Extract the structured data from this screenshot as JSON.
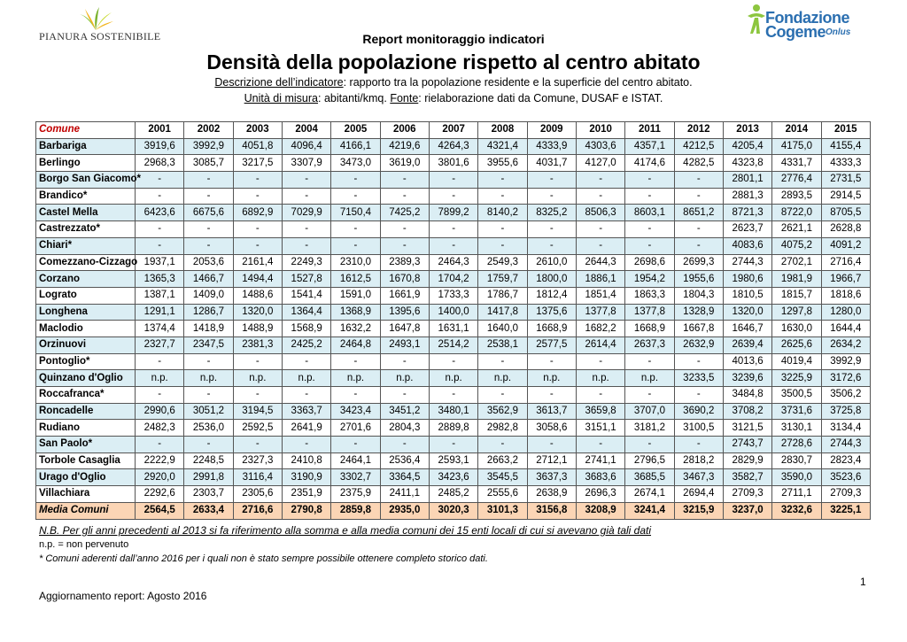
{
  "logos": {
    "left_text": "PIANURA SOSTENIBILE",
    "right_line1": "Fondazione",
    "right_line2": "Cogeme",
    "right_line3": "Onlus",
    "colors": {
      "green": "#8dc63f",
      "blue": "#2b6fb0"
    }
  },
  "report_label": "Report monitoraggio indicatori",
  "title": "Densità della popolazione rispetto al centro abitato",
  "description": {
    "label": "Descrizione dell’indicatore",
    "text": ": rapporto tra la popolazione residente e la superficie del centro abitato."
  },
  "units": {
    "label": "Unità di misura",
    "text": ": abitanti/kmq. ",
    "source_label": "Fonte",
    "source_text": ": rielaborazione dati da Comune, DUSAF e ISTAT."
  },
  "table": {
    "header": [
      "Comune",
      "2001",
      "2002",
      "2003",
      "2004",
      "2005",
      "2006",
      "2007",
      "2008",
      "2009",
      "2010",
      "2011",
      "2012",
      "2013",
      "2014",
      "2015"
    ],
    "rows": [
      [
        "Barbariga",
        "3919,6",
        "3992,9",
        "4051,8",
        "4096,4",
        "4166,1",
        "4219,6",
        "4264,3",
        "4321,4",
        "4333,9",
        "4303,6",
        "4357,1",
        "4212,5",
        "4205,4",
        "4175,0",
        "4155,4"
      ],
      [
        "Berlingo",
        "2968,3",
        "3085,7",
        "3217,5",
        "3307,9",
        "3473,0",
        "3619,0",
        "3801,6",
        "3955,6",
        "4031,7",
        "4127,0",
        "4174,6",
        "4282,5",
        "4323,8",
        "4331,7",
        "4333,3"
      ],
      [
        "Borgo San Giacomo*",
        "-",
        "-",
        "-",
        "-",
        "-",
        "-",
        "-",
        "-",
        "-",
        "-",
        "-",
        "-",
        "2801,1",
        "2776,4",
        "2731,5"
      ],
      [
        "Brandico*",
        "-",
        "-",
        "-",
        "-",
        "-",
        "-",
        "-",
        "-",
        "-",
        "-",
        "-",
        "-",
        "2881,3",
        "2893,5",
        "2914,5"
      ],
      [
        "Castel Mella",
        "6423,6",
        "6675,6",
        "6892,9",
        "7029,9",
        "7150,4",
        "7425,2",
        "7899,2",
        "8140,2",
        "8325,2",
        "8506,3",
        "8603,1",
        "8651,2",
        "8721,3",
        "8722,0",
        "8705,5"
      ],
      [
        "Castrezzato*",
        "-",
        "-",
        "-",
        "-",
        "-",
        "-",
        "-",
        "-",
        "-",
        "-",
        "-",
        "-",
        "2623,7",
        "2621,1",
        "2628,8"
      ],
      [
        "Chiari*",
        "-",
        "-",
        "-",
        "-",
        "-",
        "-",
        "-",
        "-",
        "-",
        "-",
        "-",
        "-",
        "4083,6",
        "4075,2",
        "4091,2"
      ],
      [
        "Comezzano-Cizzago",
        "1937,1",
        "2053,6",
        "2161,4",
        "2249,3",
        "2310,0",
        "2389,3",
        "2464,3",
        "2549,3",
        "2610,0",
        "2644,3",
        "2698,6",
        "2699,3",
        "2744,3",
        "2702,1",
        "2716,4"
      ],
      [
        "Corzano",
        "1365,3",
        "1466,7",
        "1494,4",
        "1527,8",
        "1612,5",
        "1670,8",
        "1704,2",
        "1759,7",
        "1800,0",
        "1886,1",
        "1954,2",
        "1955,6",
        "1980,6",
        "1981,9",
        "1966,7"
      ],
      [
        "Lograto",
        "1387,1",
        "1409,0",
        "1488,6",
        "1541,4",
        "1591,0",
        "1661,9",
        "1733,3",
        "1786,7",
        "1812,4",
        "1851,4",
        "1863,3",
        "1804,3",
        "1810,5",
        "1815,7",
        "1818,6"
      ],
      [
        "Longhena",
        "1291,1",
        "1286,7",
        "1320,0",
        "1364,4",
        "1368,9",
        "1395,6",
        "1400,0",
        "1417,8",
        "1375,6",
        "1377,8",
        "1377,8",
        "1328,9",
        "1320,0",
        "1297,8",
        "1280,0"
      ],
      [
        "Maclodio",
        "1374,4",
        "1418,9",
        "1488,9",
        "1568,9",
        "1632,2",
        "1647,8",
        "1631,1",
        "1640,0",
        "1668,9",
        "1682,2",
        "1668,9",
        "1667,8",
        "1646,7",
        "1630,0",
        "1644,4"
      ],
      [
        "Orzinuovi",
        "2327,7",
        "2347,5",
        "2381,3",
        "2425,2",
        "2464,8",
        "2493,1",
        "2514,2",
        "2538,1",
        "2577,5",
        "2614,4",
        "2637,3",
        "2632,9",
        "2639,4",
        "2625,6",
        "2634,2"
      ],
      [
        "Pontoglio*",
        "-",
        "-",
        "-",
        "-",
        "-",
        "-",
        "-",
        "-",
        "-",
        "-",
        "-",
        "-",
        "4013,6",
        "4019,4",
        "3992,9"
      ],
      [
        "Quinzano d'Oglio",
        "n.p.",
        "n.p.",
        "n.p.",
        "n.p.",
        "n.p.",
        "n.p.",
        "n.p.",
        "n.p.",
        "n.p.",
        "n.p.",
        "n.p.",
        "3233,5",
        "3239,6",
        "3225,9",
        "3172,6"
      ],
      [
        "Roccafranca*",
        "-",
        "-",
        "-",
        "-",
        "-",
        "-",
        "-",
        "-",
        "-",
        "-",
        "-",
        "-",
        "3484,8",
        "3500,5",
        "3506,2"
      ],
      [
        "Roncadelle",
        "2990,6",
        "3051,2",
        "3194,5",
        "3363,7",
        "3423,4",
        "3451,2",
        "3480,1",
        "3562,9",
        "3613,7",
        "3659,8",
        "3707,0",
        "3690,2",
        "3708,2",
        "3731,6",
        "3725,8"
      ],
      [
        "Rudiano",
        "2482,3",
        "2536,0",
        "2592,5",
        "2641,9",
        "2701,6",
        "2804,3",
        "2889,8",
        "2982,8",
        "3058,6",
        "3151,1",
        "3181,2",
        "3100,5",
        "3121,5",
        "3130,1",
        "3134,4"
      ],
      [
        "San Paolo*",
        "-",
        "-",
        "-",
        "-",
        "-",
        "-",
        "-",
        "-",
        "-",
        "-",
        "-",
        "-",
        "2743,7",
        "2728,6",
        "2744,3"
      ],
      [
        "Torbole Casaglia",
        "2222,9",
        "2248,5",
        "2327,3",
        "2410,8",
        "2464,1",
        "2536,4",
        "2593,1",
        "2663,2",
        "2712,1",
        "2741,1",
        "2796,5",
        "2818,2",
        "2829,9",
        "2830,7",
        "2823,4"
      ],
      [
        "Urago d'Oglio",
        "2920,0",
        "2991,8",
        "3116,4",
        "3190,9",
        "3302,7",
        "3364,5",
        "3423,6",
        "3545,5",
        "3637,3",
        "3683,6",
        "3685,5",
        "3467,3",
        "3582,7",
        "3590,0",
        "3523,6"
      ],
      [
        "Villachiara",
        "2292,6",
        "2303,7",
        "2305,6",
        "2351,9",
        "2375,9",
        "2411,1",
        "2485,2",
        "2555,6",
        "2638,9",
        "2696,3",
        "2674,1",
        "2694,4",
        "2709,3",
        "2711,1",
        "2709,3"
      ]
    ],
    "average": [
      "Media Comuni",
      "2564,5",
      "2633,4",
      "2716,6",
      "2790,8",
      "2859,8",
      "2935,0",
      "3020,3",
      "3101,3",
      "3156,8",
      "3208,9",
      "3241,4",
      "3215,9",
      "3237,0",
      "3232,6",
      "3225,1"
    ],
    "colors": {
      "row_alt": "#dbeef4",
      "avg_row": "#fbd5b5",
      "header_first": "#c00000"
    }
  },
  "notes": {
    "nb": "N.B. Per gli anni precedenti al 2013 si fa riferimento alla somma e alla media comuni dei 15 enti locali di cui si avevano già tali dati",
    "np": "n.p.  = non pervenuto",
    "star": "* Comuni aderenti dall’anno 2016 per i quali non è stato sempre possibile ottenere completo storico dati."
  },
  "page_number": "1",
  "footer": "Aggiornamento report: Agosto 2016"
}
